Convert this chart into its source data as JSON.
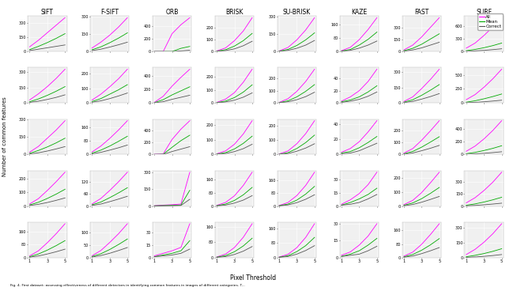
{
  "col_labels": [
    "SIFT",
    "F-SIFT",
    "ORB",
    "BRISK",
    "SU-BRISK",
    "KAZE",
    "FAST",
    "SURF"
  ],
  "row_count": 5,
  "col_count": 8,
  "x_ticks": [
    1,
    2,
    3,
    4,
    5
  ],
  "x_label": "Pixel Threshold",
  "y_label": "Number of common features",
  "line_colors": [
    "#ff00ff",
    "#00aa00",
    "#555555"
  ],
  "line_labels": [
    "All",
    "Mean",
    "Correct"
  ],
  "title_fontsize": 5.5,
  "tick_fontsize": 3.5,
  "legend_fontsize": 4.0,
  "background_color": "#f0f0f0",
  "caption": "Fig. 4. First dataset: assessing effectiveness of different detectors in identifying common features in images of different categories. T...",
  "subplot_data": [
    [
      {
        "All": [
          50,
          120,
          200,
          280,
          360
        ],
        "Mean": [
          20,
          55,
          95,
          140,
          190
        ],
        "Correct": [
          10,
          25,
          40,
          55,
          70
        ]
      },
      {
        "All": [
          30,
          80,
          140,
          210,
          290
        ],
        "Mean": [
          15,
          40,
          75,
          115,
          160
        ],
        "Correct": [
          8,
          20,
          38,
          58,
          80
        ]
      },
      {
        "All": [
          0,
          0,
          280,
          420,
          530
        ],
        "Mean": [
          0,
          0,
          0,
          50,
          80
        ],
        "Correct": [
          0,
          0,
          0,
          10,
          20
        ]
      },
      {
        "All": [
          5,
          30,
          90,
          170,
          280
        ],
        "Mean": [
          3,
          15,
          45,
          90,
          150
        ],
        "Correct": [
          2,
          8,
          22,
          48,
          85
        ]
      },
      {
        "All": [
          5,
          35,
          100,
          185,
          290
        ],
        "Mean": [
          3,
          18,
          52,
          100,
          160
        ],
        "Correct": [
          2,
          10,
          28,
          55,
          95
        ]
      },
      {
        "All": [
          5,
          25,
          70,
          130,
          200
        ],
        "Mean": [
          3,
          12,
          38,
          72,
          115
        ],
        "Correct": [
          2,
          7,
          20,
          38,
          62
        ]
      },
      {
        "All": [
          20,
          80,
          180,
          300,
          420
        ],
        "Mean": [
          10,
          40,
          90,
          155,
          220
        ],
        "Correct": [
          5,
          20,
          45,
          80,
          115
        ]
      },
      {
        "All": [
          80,
          200,
          380,
          580,
          800
        ],
        "Mean": [
          20,
          50,
          90,
          140,
          200
        ],
        "Correct": [
          5,
          15,
          28,
          45,
          65
        ]
      }
    ],
    [
      {
        "All": [
          30,
          90,
          160,
          240,
          330
        ],
        "Mean": [
          12,
          40,
          75,
          115,
          160
        ],
        "Correct": [
          6,
          18,
          35,
          55,
          80
        ]
      },
      {
        "All": [
          20,
          60,
          110,
          165,
          230
        ],
        "Mean": [
          10,
          30,
          60,
          90,
          125
        ],
        "Correct": [
          5,
          15,
          30,
          48,
          68
        ]
      },
      {
        "All": [
          10,
          100,
          250,
          380,
          500
        ],
        "Mean": [
          5,
          50,
          120,
          180,
          240
        ],
        "Correct": [
          2,
          20,
          55,
          85,
          115
        ]
      },
      {
        "All": [
          5,
          30,
          80,
          160,
          260
        ],
        "Mean": [
          3,
          15,
          42,
          84,
          140
        ],
        "Correct": [
          2,
          8,
          22,
          45,
          78
        ]
      },
      {
        "All": [
          5,
          35,
          95,
          175,
          275
        ],
        "Mean": [
          3,
          18,
          50,
          95,
          150
        ],
        "Correct": [
          2,
          10,
          27,
          52,
          88
        ]
      },
      {
        "All": [
          3,
          10,
          20,
          35,
          55
        ],
        "Mean": [
          2,
          5,
          10,
          18,
          28
        ],
        "Correct": [
          1,
          3,
          6,
          11,
          18
        ]
      },
      {
        "All": [
          15,
          60,
          140,
          230,
          330
        ],
        "Mean": [
          8,
          32,
          75,
          125,
          180
        ],
        "Correct": [
          4,
          16,
          38,
          63,
          92
        ]
      },
      {
        "All": [
          60,
          150,
          280,
          430,
          600
        ],
        "Mean": [
          15,
          40,
          75,
          115,
          160
        ],
        "Correct": [
          4,
          12,
          22,
          35,
          50
        ]
      }
    ],
    [
      {
        "All": [
          20,
          70,
          140,
          210,
          290
        ],
        "Mean": [
          10,
          35,
          65,
          100,
          140
        ],
        "Correct": [
          5,
          15,
          30,
          48,
          68
        ]
      },
      {
        "All": [
          15,
          50,
          95,
          145,
          200
        ],
        "Mean": [
          8,
          26,
          50,
          78,
          108
        ],
        "Correct": [
          4,
          13,
          26,
          40,
          56
        ]
      },
      {
        "All": [
          5,
          10,
          250,
          420,
          560
        ],
        "Mean": [
          2,
          5,
          120,
          230,
          320
        ],
        "Correct": [
          1,
          2,
          50,
          90,
          130
        ]
      },
      {
        "All": [
          5,
          25,
          70,
          140,
          230
        ],
        "Mean": [
          3,
          13,
          38,
          76,
          125
        ],
        "Correct": [
          2,
          7,
          20,
          40,
          70
        ]
      },
      {
        "All": [
          4,
          25,
          75,
          145,
          235
        ],
        "Mean": [
          2,
          13,
          42,
          83,
          135
        ],
        "Correct": [
          1,
          7,
          23,
          45,
          75
        ]
      },
      {
        "All": [
          3,
          8,
          17,
          30,
          45
        ],
        "Mean": [
          2,
          4,
          9,
          16,
          24
        ],
        "Correct": [
          1,
          2,
          5,
          10,
          15
        ]
      },
      {
        "All": [
          12,
          50,
          120,
          200,
          285
        ],
        "Mean": [
          6,
          26,
          62,
          105,
          150
        ],
        "Correct": [
          3,
          13,
          32,
          53,
          77
        ]
      },
      {
        "All": [
          50,
          130,
          240,
          370,
          520
        ],
        "Mean": [
          13,
          33,
          62,
          95,
          135
        ],
        "Correct": [
          4,
          10,
          19,
          30,
          43
        ]
      }
    ],
    [
      {
        "All": [
          15,
          55,
          115,
          180,
          250
        ],
        "Mean": [
          8,
          28,
          56,
          88,
          124
        ],
        "Correct": [
          4,
          13,
          26,
          42,
          60
        ]
      },
      {
        "All": [
          10,
          38,
          78,
          122,
          170
        ],
        "Mean": [
          6,
          20,
          42,
          66,
          92
        ],
        "Correct": [
          3,
          10,
          22,
          35,
          49
        ]
      },
      {
        "All": [
          3,
          8,
          12,
          18,
          300
        ],
        "Mean": [
          2,
          4,
          6,
          9,
          140
        ],
        "Correct": [
          1,
          2,
          3,
          5,
          60
        ]
      },
      {
        "All": [
          4,
          22,
          62,
          125,
          205
        ],
        "Mean": [
          2,
          12,
          34,
          68,
          113
        ],
        "Correct": [
          1,
          6,
          18,
          36,
          63
        ]
      },
      {
        "All": [
          3,
          22,
          65,
          128,
          210
        ],
        "Mean": [
          2,
          12,
          37,
          74,
          122
        ],
        "Correct": [
          1,
          7,
          21,
          42,
          70
        ]
      },
      {
        "All": [
          2,
          7,
          14,
          24,
          38
        ],
        "Mean": [
          1,
          4,
          8,
          13,
          20
        ],
        "Correct": [
          1,
          2,
          4,
          8,
          13
        ]
      },
      {
        "All": [
          10,
          40,
          95,
          165,
          240
        ],
        "Mean": [
          5,
          22,
          52,
          90,
          132
        ],
        "Correct": [
          2,
          11,
          27,
          47,
          68
        ]
      },
      {
        "All": [
          40,
          105,
          195,
          300,
          425
        ],
        "Mean": [
          10,
          27,
          50,
          78,
          110
        ],
        "Correct": [
          3,
          8,
          16,
          25,
          36
        ]
      }
    ],
    [
      {
        "All": [
          10,
          42,
          92,
          148,
          210
        ],
        "Mean": [
          5,
          22,
          46,
          74,
          105
        ],
        "Correct": [
          2,
          10,
          22,
          36,
          52
        ]
      },
      {
        "All": [
          7,
          28,
          60,
          95,
          135
        ],
        "Mean": [
          4,
          15,
          32,
          52,
          74
        ],
        "Correct": [
          2,
          8,
          17,
          28,
          40
        ]
      },
      {
        "All": [
          2,
          5,
          8,
          12,
          40
        ],
        "Mean": [
          1,
          3,
          5,
          8,
          20
        ],
        "Correct": [
          1,
          2,
          3,
          5,
          10
        ]
      },
      {
        "All": [
          3,
          18,
          52,
          105,
          175
        ],
        "Mean": [
          2,
          10,
          30,
          60,
          100
        ],
        "Correct": [
          1,
          5,
          16,
          33,
          57
        ]
      },
      {
        "All": [
          3,
          18,
          55,
          112,
          188
        ],
        "Mean": [
          2,
          10,
          33,
          66,
          112
        ],
        "Correct": [
          1,
          6,
          19,
          39,
          66
        ]
      },
      {
        "All": [
          2,
          5,
          11,
          19,
          30
        ],
        "Mean": [
          1,
          3,
          6,
          11,
          17
        ],
        "Correct": [
          1,
          2,
          3,
          6,
          10
        ]
      },
      {
        "All": [
          8,
          32,
          78,
          136,
          200
        ],
        "Mean": [
          4,
          18,
          43,
          75,
          112
        ],
        "Correct": [
          2,
          9,
          23,
          40,
          59
        ]
      },
      {
        "All": [
          30,
          82,
          153,
          238,
          338
        ],
        "Mean": [
          8,
          22,
          40,
          62,
          88
        ],
        "Correct": [
          2,
          6,
          12,
          20,
          30
        ]
      }
    ]
  ]
}
